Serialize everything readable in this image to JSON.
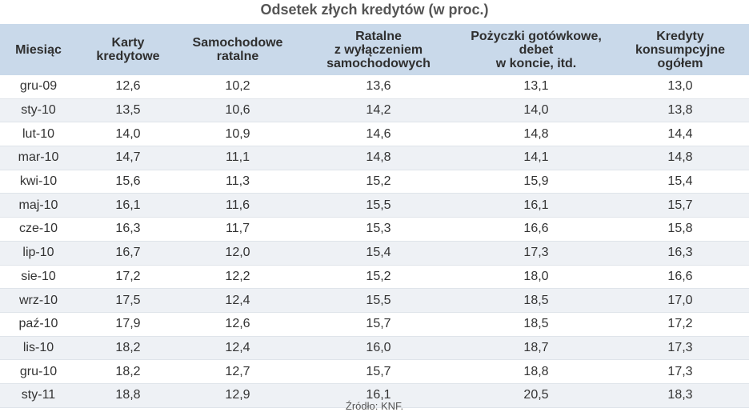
{
  "chart_data": {
    "type": "table",
    "title": "Odsetek złych kredytów (w proc.)",
    "columns": [
      "Miesiąc",
      "Karty\nkredytowe",
      "Samochodowe\nratalne",
      "Ratalne\nz wyłączeniem\nsamochodowych",
      "Pożyczki gotówkowe,\ndebet\nw koncie, itd.",
      "Kredyty\nkonsumpcyjne\nogółem"
    ],
    "rows": [
      [
        "gru-09",
        "12,6",
        "10,2",
        "13,6",
        "13,1",
        "13,0"
      ],
      [
        "sty-10",
        "13,5",
        "10,6",
        "14,2",
        "14,0",
        "13,8"
      ],
      [
        "lut-10",
        "14,0",
        "10,9",
        "14,6",
        "14,8",
        "14,4"
      ],
      [
        "mar-10",
        "14,7",
        "11,1",
        "14,8",
        "14,1",
        "14,8"
      ],
      [
        "kwi-10",
        "15,6",
        "11,3",
        "15,2",
        "15,9",
        "15,4"
      ],
      [
        "maj-10",
        "16,1",
        "11,6",
        "15,5",
        "16,1",
        "15,7"
      ],
      [
        "cze-10",
        "16,3",
        "11,7",
        "15,3",
        "16,6",
        "15,8"
      ],
      [
        "lip-10",
        "16,7",
        "12,0",
        "15,4",
        "17,3",
        "16,3"
      ],
      [
        "sie-10",
        "17,2",
        "12,2",
        "15,2",
        "18,0",
        "16,6"
      ],
      [
        "wrz-10",
        "17,5",
        "12,4",
        "15,5",
        "18,5",
        "17,0"
      ],
      [
        "paź-10",
        "17,9",
        "12,6",
        "15,7",
        "18,5",
        "17,2"
      ],
      [
        "lis-10",
        "18,2",
        "12,4",
        "16,0",
        "18,7",
        "17,3"
      ],
      [
        "gru-10",
        "18,2",
        "12,7",
        "15,7",
        "18,8",
        "17,3"
      ],
      [
        "sty-11",
        "18,8",
        "12,9",
        "16,1",
        "20,5",
        "18,3"
      ]
    ],
    "source": "Źródło: KNF.",
    "header_color": "#c9d9ea",
    "stripe_color": "#eef1f5"
  }
}
